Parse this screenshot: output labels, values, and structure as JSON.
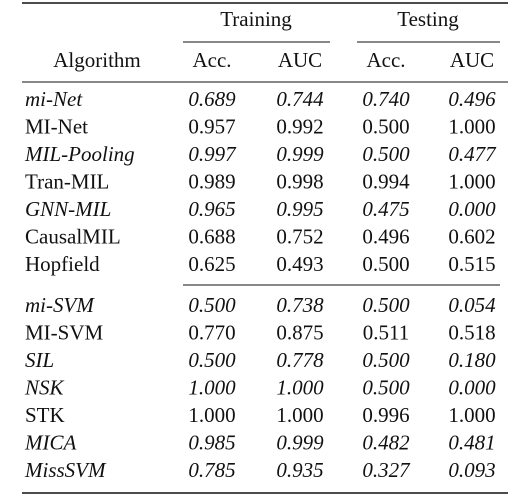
{
  "table": {
    "header_groups": [
      "Training",
      "Testing"
    ],
    "columns": [
      "Algorithm",
      "Acc.",
      "AUC",
      "Acc.",
      "AUC"
    ],
    "sections": [
      {
        "rows": [
          {
            "italic": true,
            "cells": [
              "mi-Net",
              "0.689",
              "0.744",
              "0.740",
              "0.496"
            ]
          },
          {
            "italic": false,
            "cells": [
              "MI-Net",
              "0.957",
              "0.992",
              "0.500",
              "1.000"
            ]
          },
          {
            "italic": true,
            "cells": [
              "MIL-Pooling",
              "0.997",
              "0.999",
              "0.500",
              "0.477"
            ]
          },
          {
            "italic": false,
            "cells": [
              "Tran-MIL",
              "0.989",
              "0.998",
              "0.994",
              "1.000"
            ]
          },
          {
            "italic": true,
            "cells": [
              "GNN-MIL",
              "0.965",
              "0.995",
              "0.475",
              "0.000"
            ]
          },
          {
            "italic": false,
            "cells": [
              "CausalMIL",
              "0.688",
              "0.752",
              "0.496",
              "0.602"
            ]
          },
          {
            "italic": false,
            "cells": [
              "Hopfield",
              "0.625",
              "0.493",
              "0.500",
              "0.515"
            ]
          }
        ]
      },
      {
        "rows": [
          {
            "italic": true,
            "cells": [
              "mi-SVM",
              "0.500",
              "0.738",
              "0.500",
              "0.054"
            ]
          },
          {
            "italic": false,
            "cells": [
              "MI-SVM",
              "0.770",
              "0.875",
              "0.511",
              "0.518"
            ]
          },
          {
            "italic": true,
            "cells": [
              "SIL",
              "0.500",
              "0.778",
              "0.500",
              "0.180"
            ]
          },
          {
            "italic": true,
            "cells": [
              "NSK",
              "1.000",
              "1.000",
              "0.500",
              "0.000"
            ]
          },
          {
            "italic": false,
            "cells": [
              "STK",
              "1.000",
              "1.000",
              "0.996",
              "1.000"
            ]
          },
          {
            "italic": true,
            "cells": [
              "MICA",
              "0.985",
              "0.999",
              "0.482",
              "0.481"
            ]
          },
          {
            "italic": true,
            "cells": [
              "MissSVM",
              "0.785",
              "0.935",
              "0.327",
              "0.093"
            ]
          }
        ]
      }
    ]
  }
}
